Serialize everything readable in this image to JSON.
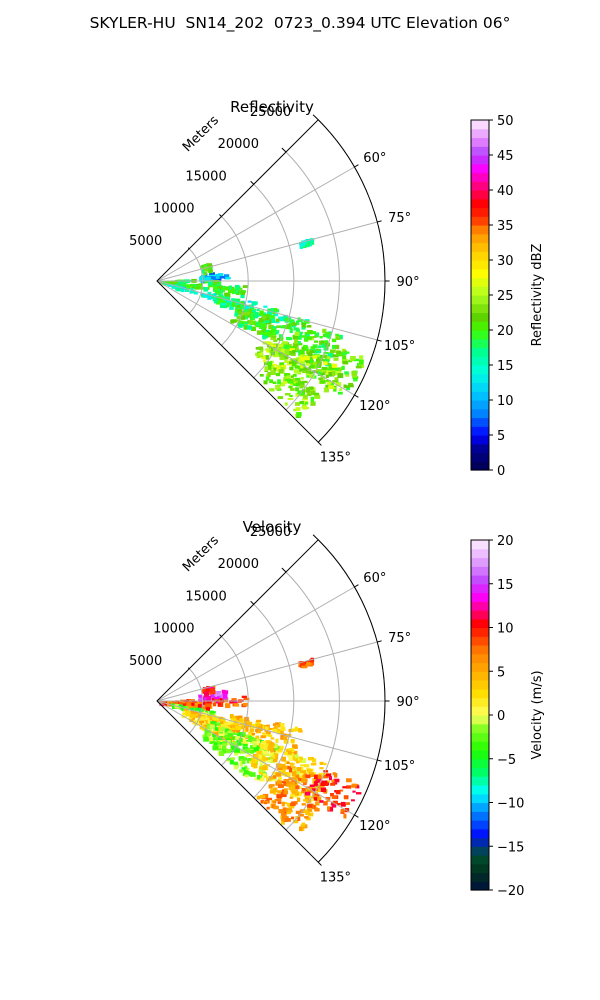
{
  "page": {
    "title": "SKYLER-HU  SN14_202  0723_0.394 UTC Elevation 06°"
  },
  "chart_data": [
    {
      "type": "polar",
      "title": "Reflectivity",
      "radial_axis_label": "Meters",
      "radial_ticks": [
        5000,
        10000,
        15000,
        20000,
        25000
      ],
      "radial_tick_labels": [
        "5000",
        "10000",
        "15000",
        "20000",
        "25000"
      ],
      "rlim": [
        0,
        25000
      ],
      "angle_ticks": [
        60,
        75,
        90,
        105,
        120,
        135
      ],
      "angle_tick_labels": [
        "60°",
        "75°",
        "90°",
        "105°",
        "120°",
        "135°"
      ],
      "theta_range_deg": [
        45,
        135
      ],
      "grid": true,
      "colorbar": {
        "label": "Reflectivity dBZ",
        "range": [
          0,
          50
        ],
        "ticks": [
          0,
          5,
          10,
          15,
          20,
          25,
          30,
          35,
          40,
          45,
          50
        ],
        "tick_labels": [
          "0",
          "5",
          "10",
          "15",
          "20",
          "25",
          "30",
          "35",
          "40",
          "45",
          "50"
        ],
        "colormap": "pyart_NWSRef-like"
      },
      "echo_regions": [
        {
          "az": [
            92.5,
            100.0
          ],
          "r": [
            100,
            9500
          ],
          "value": 20
        },
        {
          "az": [
            86.0,
            88.5
          ],
          "r": [
            200,
            6500
          ],
          "value": 20
        },
        {
          "az": [
            102.0,
            107.0
          ],
          "r": [
            1000,
            11000
          ],
          "value": 15
        },
        {
          "az": [
            103.0,
            110.0
          ],
          "r": [
            6500,
            17000
          ],
          "value": 17
        },
        {
          "az": [
            106.0,
            118.0
          ],
          "r": [
            9000,
            21000
          ],
          "value": 20
        },
        {
          "az": [
            110.0,
            122.0
          ],
          "r": [
            15000,
            24000
          ],
          "value": 22
        },
        {
          "az": [
            115.0,
            127.0
          ],
          "r": [
            13000,
            22000
          ],
          "value": 24
        },
        {
          "az": [
            125.0,
            134.0
          ],
          "r": [
            15000,
            21500
          ],
          "value": 23
        },
        {
          "az": [
            80.0,
            87.5
          ],
          "r": [
            4500,
            7500
          ],
          "value": 10
        },
        {
          "az": [
            70.0,
            80.0
          ],
          "r": [
            5000,
            6000
          ],
          "value": 20
        },
        {
          "az": [
            74.0,
            76.0
          ],
          "r": [
            16000,
            17500
          ],
          "value": 15
        },
        {
          "az": [
            89.0,
            91.0
          ],
          "r": [
            5500,
            6500
          ],
          "value": 20
        }
      ]
    },
    {
      "type": "polar",
      "title": "Velocity",
      "radial_axis_label": "Meters",
      "radial_ticks": [
        5000,
        10000,
        15000,
        20000,
        25000
      ],
      "radial_tick_labels": [
        "5000",
        "10000",
        "15000",
        "20000",
        "25000"
      ],
      "rlim": [
        0,
        25000
      ],
      "angle_ticks": [
        60,
        75,
        90,
        105,
        120,
        135
      ],
      "angle_tick_labels": [
        "60°",
        "75°",
        "90°",
        "105°",
        "120°",
        "135°"
      ],
      "theta_range_deg": [
        45,
        135
      ],
      "grid": true,
      "colorbar": {
        "label": "Velocity (m/s)",
        "range": [
          -20,
          20
        ],
        "ticks": [
          -20,
          -15,
          -10,
          -5,
          0,
          5,
          10,
          15,
          20
        ],
        "tick_labels": [
          "−20",
          "−15",
          "−10",
          "−5",
          "0",
          "5",
          "10",
          "15",
          "20"
        ],
        "colormap": "pyart_NWSVel-like"
      },
      "echo_regions": [
        {
          "az": [
            86.0,
            89.5
          ],
          "r": [
            200,
            9500
          ],
          "value": 10
        },
        {
          "az": [
            90.0,
            92.0
          ],
          "r": [
            200,
            10000
          ],
          "value": 9
        },
        {
          "az": [
            92.0,
            98.0
          ],
          "r": [
            200,
            6000
          ],
          "value": 8
        },
        {
          "az": [
            80.0,
            86.0
          ],
          "r": [
            4500,
            7500
          ],
          "value": 15
        },
        {
          "az": [
            73.0,
            80.0
          ],
          "r": [
            5000,
            6000
          ],
          "value": 10
        },
        {
          "az": [
            99.0,
            104.0
          ],
          "r": [
            1500,
            6000
          ],
          "value": -3
        },
        {
          "az": [
            104.0,
            120.0
          ],
          "r": [
            3000,
            9000
          ],
          "value": 3
        },
        {
          "az": [
            100.0,
            112.0
          ],
          "r": [
            8000,
            16000
          ],
          "value": 4
        },
        {
          "az": [
            110.0,
            130.0
          ],
          "r": [
            6000,
            14000
          ],
          "value": -2
        },
        {
          "az": [
            110.0,
            125.0
          ],
          "r": [
            12000,
            20000
          ],
          "value": 2
        },
        {
          "az": [
            115.0,
            134.0
          ],
          "r": [
            15000,
            21000
          ],
          "value": 6
        },
        {
          "az": [
            112.0,
            122.0
          ],
          "r": [
            19000,
            24000
          ],
          "value": 9
        },
        {
          "az": [
            74.0,
            76.0
          ],
          "r": [
            16000,
            17500
          ],
          "value": 8
        }
      ]
    }
  ]
}
